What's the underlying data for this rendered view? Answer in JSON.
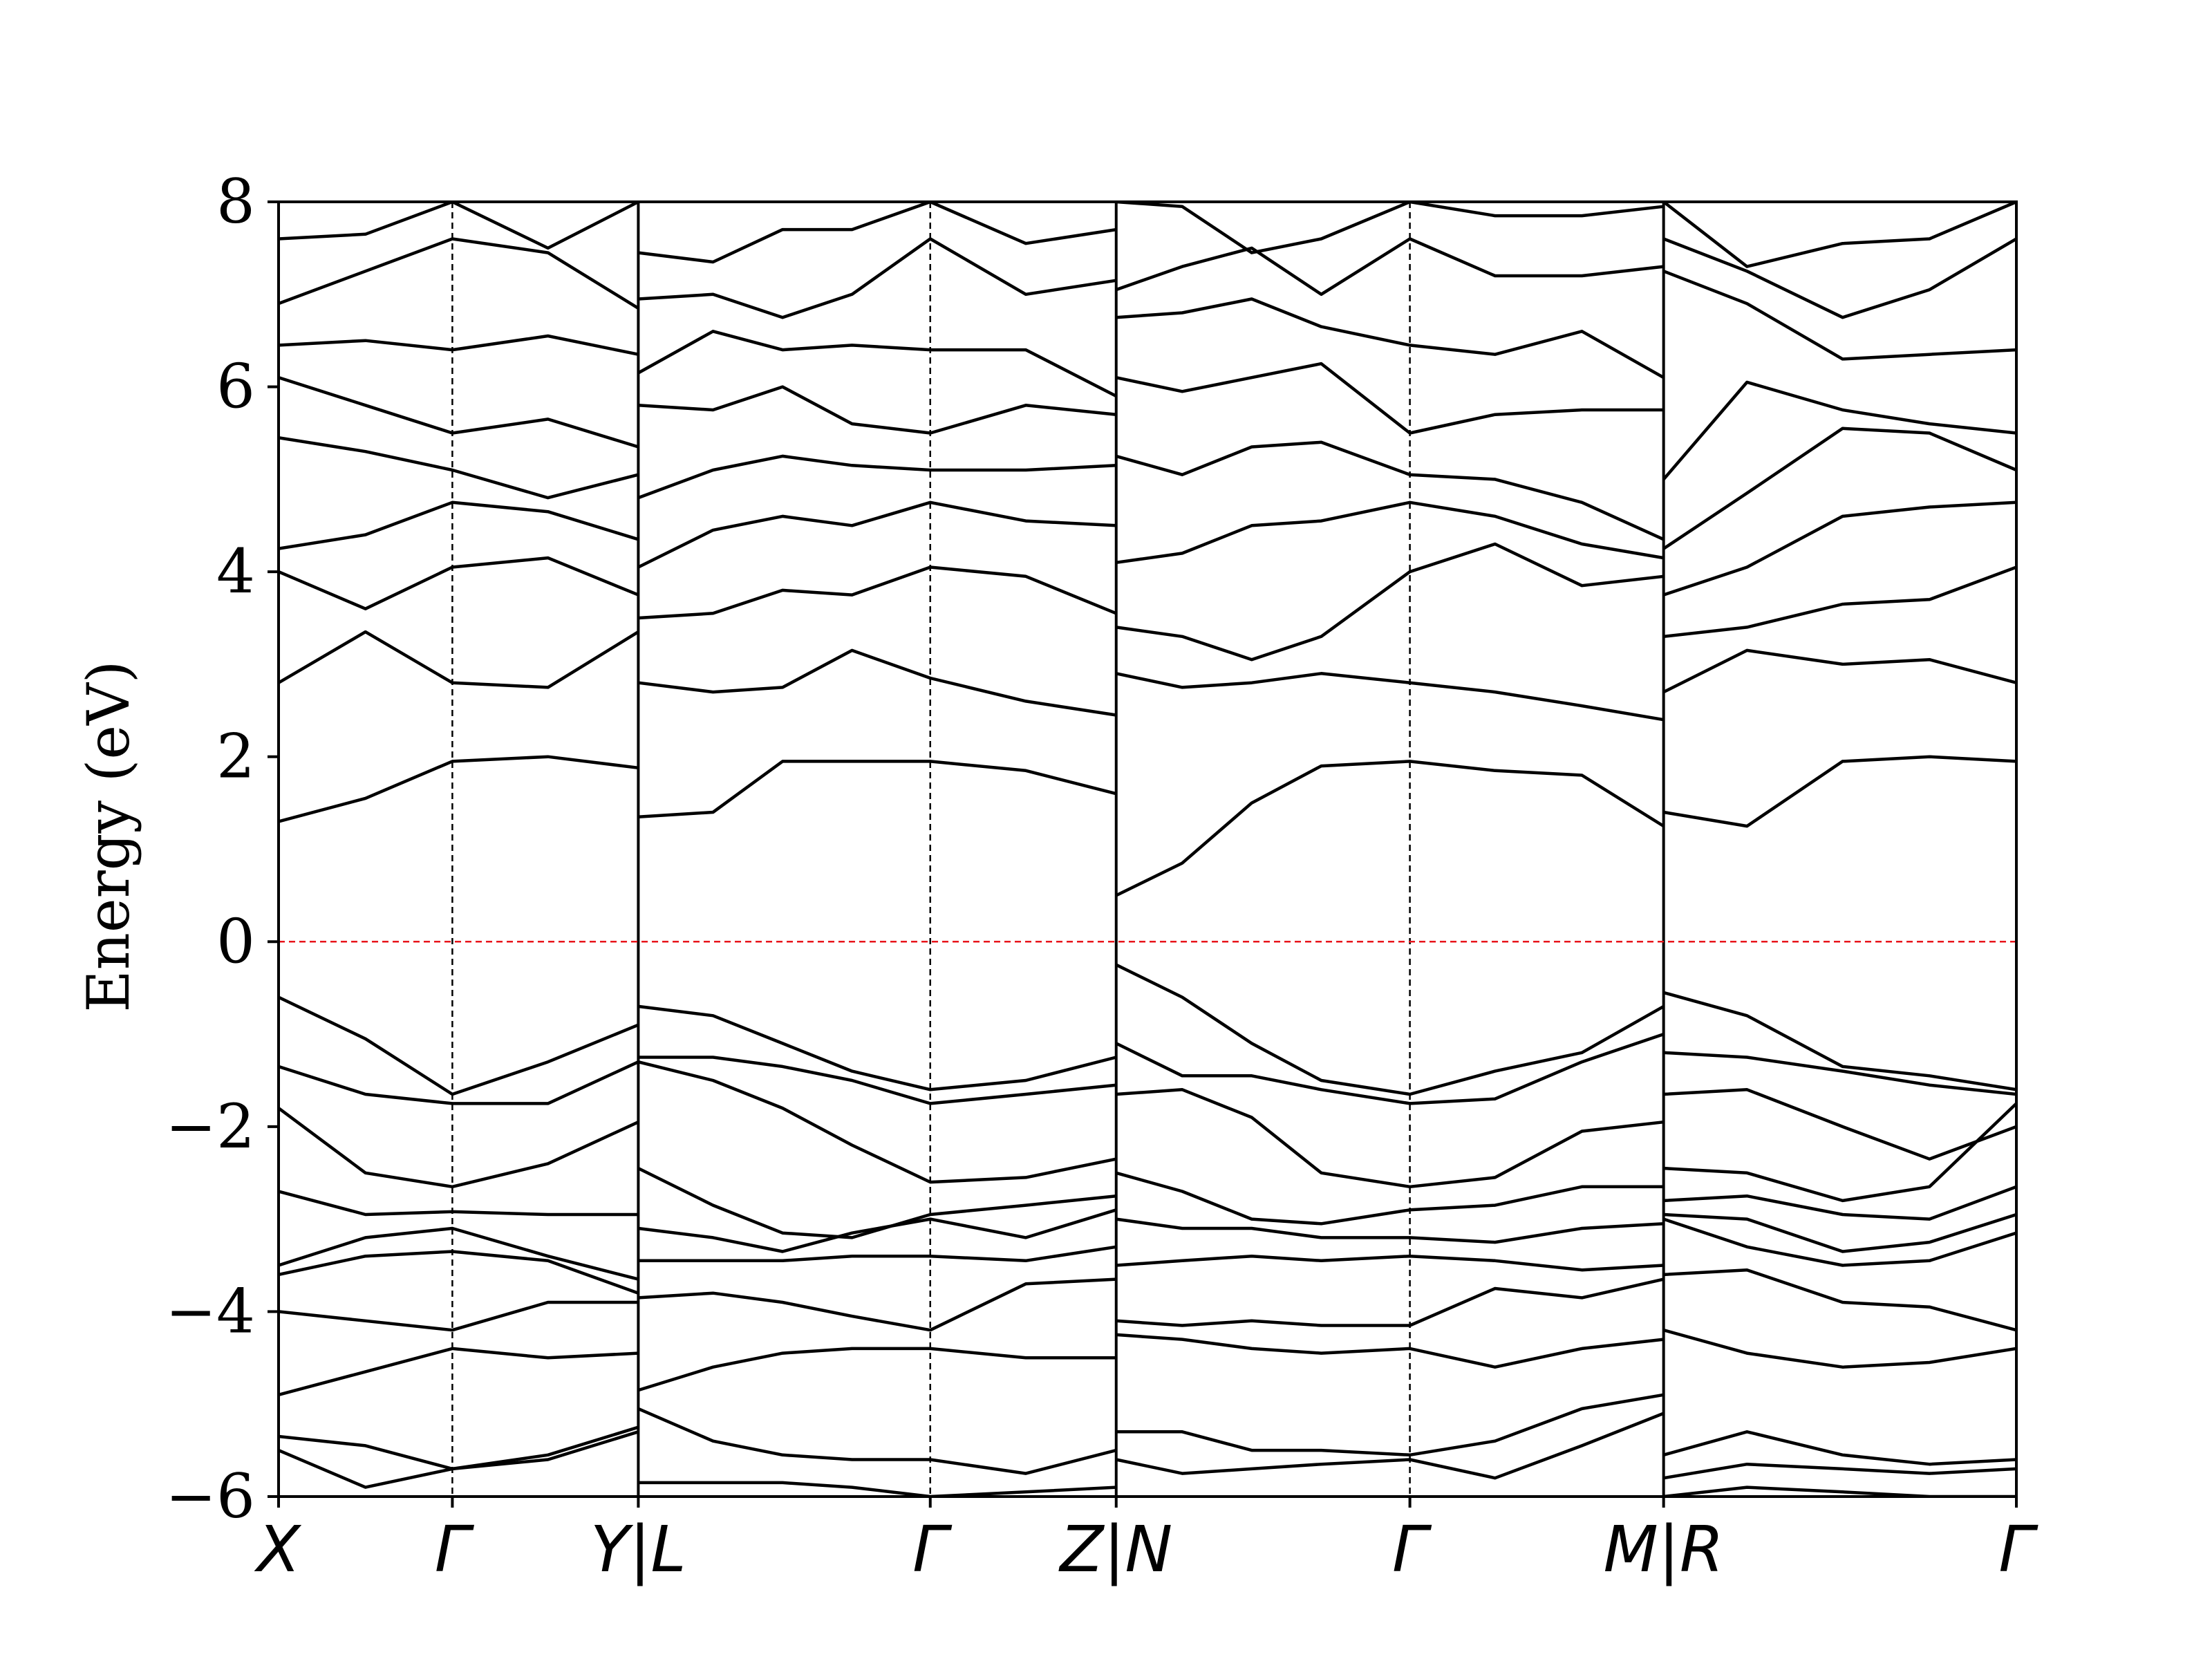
{
  "chart_data": {
    "type": "line",
    "title": "",
    "xlabel": "",
    "ylabel": "Energy (eV)",
    "ylim": [
      -6,
      8
    ],
    "yticks": [
      8,
      6,
      4,
      2,
      0,
      -2,
      -4,
      -6
    ],
    "ytick_labels": [
      "8",
      "6",
      "4",
      "2",
      "0",
      "−2",
      "−4",
      "−6"
    ],
    "fermi_level": 0,
    "fermi_color": "#e8141b",
    "band_color": "#000000",
    "grid": false,
    "x_ticks": [
      {
        "label": "X",
        "x": 0
      },
      {
        "label": "Γ",
        "x": 0.1
      },
      {
        "label": "Y|L",
        "x": 0.207
      },
      {
        "label": "Γ",
        "x": 0.375
      },
      {
        "label": "Z|N",
        "x": 0.482
      },
      {
        "label": "Γ",
        "x": 0.651
      },
      {
        "label": "M|R",
        "x": 0.797
      },
      {
        "label": "Γ",
        "x": 1.0
      }
    ],
    "gamma_lines": [
      0.1,
      0.375,
      0.651
    ],
    "segment_boundaries": [
      0.207,
      0.482,
      0.797
    ],
    "segments": [
      {
        "path": "X-Γ-Y",
        "x": [
          0,
          0.05,
          0.1,
          0.155,
          0.207
        ],
        "bands": [
          [
            -5.5,
            -5.9,
            -5.7,
            -5.6,
            -5.3
          ],
          [
            -5.35,
            -5.45,
            -5.7,
            -5.55,
            -5.25
          ],
          [
            -4.9,
            -4.65,
            -4.4,
            -4.5,
            -4.45
          ],
          [
            -4.0,
            -4.1,
            -4.2,
            -3.9,
            -3.9
          ],
          [
            -3.6,
            -3.4,
            -3.35,
            -3.45,
            -3.8
          ],
          [
            -3.5,
            -3.2,
            -3.1,
            -3.4,
            -3.65
          ],
          [
            -2.7,
            -2.95,
            -2.92,
            -2.95,
            -2.95
          ],
          [
            -1.8,
            -2.5,
            -2.65,
            -2.4,
            -1.95
          ],
          [
            -1.35,
            -1.65,
            -1.75,
            -1.75,
            -1.3
          ],
          [
            -0.6,
            -1.05,
            -1.65,
            -1.3,
            -0.9
          ],
          [
            1.3,
            1.55,
            1.95,
            2.0,
            1.88
          ],
          [
            2.8,
            3.35,
            2.8,
            2.75,
            3.35
          ],
          [
            4.0,
            3.6,
            4.05,
            4.15,
            3.75
          ],
          [
            4.25,
            4.4,
            4.75,
            4.65,
            4.35
          ],
          [
            5.45,
            5.3,
            5.1,
            4.8,
            5.05
          ],
          [
            6.1,
            5.8,
            5.5,
            5.65,
            5.35
          ],
          [
            6.45,
            6.5,
            6.4,
            6.55,
            6.35
          ],
          [
            6.9,
            7.25,
            7.6,
            7.45,
            6.85
          ],
          [
            7.6,
            7.65,
            8.0,
            7.5,
            8.0
          ]
        ]
      },
      {
        "path": "L-Γ-Z",
        "x": [
          0.207,
          0.25,
          0.29,
          0.33,
          0.375,
          0.43,
          0.482
        ],
        "bands": [
          [
            -5.85,
            -5.85,
            -5.85,
            -5.9,
            -6.0,
            -5.95,
            -5.9
          ],
          [
            -5.05,
            -5.4,
            -5.55,
            -5.6,
            -5.6,
            -5.75,
            -5.5
          ],
          [
            -4.85,
            -4.6,
            -4.45,
            -4.4,
            -4.4,
            -4.5,
            -4.5
          ],
          [
            -3.85,
            -3.8,
            -3.9,
            -4.05,
            -4.2,
            -3.7,
            -3.65
          ],
          [
            -3.45,
            -3.45,
            -3.45,
            -3.4,
            -3.4,
            -3.45,
            -3.3
          ],
          [
            -3.1,
            -3.2,
            -3.35,
            -3.15,
            -3.0,
            -3.2,
            -2.9
          ],
          [
            -2.45,
            -2.85,
            -3.15,
            -3.2,
            -2.95,
            -2.85,
            -2.75
          ],
          [
            -1.3,
            -1.5,
            -1.8,
            -2.2,
            -2.6,
            -2.55,
            -2.35
          ],
          [
            -1.25,
            -1.25,
            -1.35,
            -1.5,
            -1.75,
            -1.65,
            -1.55
          ],
          [
            -0.7,
            -0.8,
            -1.1,
            -1.4,
            -1.6,
            -1.5,
            -1.25
          ],
          [
            1.35,
            1.4,
            1.95,
            1.95,
            1.95,
            1.85,
            1.6
          ],
          [
            2.8,
            2.7,
            2.75,
            3.15,
            2.85,
            2.6,
            2.45
          ],
          [
            3.5,
            3.55,
            3.8,
            3.75,
            4.05,
            3.95,
            3.55
          ],
          [
            4.05,
            4.45,
            4.6,
            4.5,
            4.75,
            4.55,
            4.5
          ],
          [
            4.8,
            5.1,
            5.25,
            5.15,
            5.1,
            5.1,
            5.15
          ],
          [
            5.8,
            5.75,
            6.0,
            5.6,
            5.5,
            5.8,
            5.7
          ],
          [
            6.15,
            6.6,
            6.4,
            6.45,
            6.4,
            6.4,
            5.9
          ],
          [
            6.95,
            7.0,
            6.75,
            7.0,
            7.6,
            7.0,
            7.15
          ],
          [
            7.45,
            7.35,
            7.7,
            7.7,
            8.0,
            7.55,
            7.7
          ]
        ]
      },
      {
        "path": "N-Γ-M",
        "x": [
          0.482,
          0.52,
          0.56,
          0.6,
          0.651,
          0.7,
          0.75,
          0.797
        ],
        "bands": [
          [
            -5.6,
            -5.75,
            -5.7,
            -5.65,
            -5.6,
            -5.8,
            -5.45,
            -5.1
          ],
          [
            -5.3,
            -5.3,
            -5.5,
            -5.5,
            -5.55,
            -5.4,
            -5.05,
            -4.9
          ],
          [
            -4.25,
            -4.3,
            -4.4,
            -4.45,
            -4.4,
            -4.6,
            -4.4,
            -4.3
          ],
          [
            -4.1,
            -4.15,
            -4.1,
            -4.15,
            -4.15,
            -3.75,
            -3.85,
            -3.65
          ],
          [
            -3.5,
            -3.45,
            -3.4,
            -3.45,
            -3.4,
            -3.45,
            -3.55,
            -3.5
          ],
          [
            -3.0,
            -3.1,
            -3.1,
            -3.2,
            -3.2,
            -3.25,
            -3.1,
            -3.05
          ],
          [
            -2.5,
            -2.7,
            -3.0,
            -3.05,
            -2.9,
            -2.85,
            -2.65,
            -2.65
          ],
          [
            -1.65,
            -1.6,
            -1.9,
            -2.5,
            -2.65,
            -2.55,
            -2.05,
            -1.95
          ],
          [
            -1.1,
            -1.45,
            -1.45,
            -1.6,
            -1.75,
            -1.7,
            -1.3,
            -1.0
          ],
          [
            -0.25,
            -0.6,
            -1.1,
            -1.5,
            -1.65,
            -1.4,
            -1.2,
            -0.7
          ],
          [
            0.5,
            0.85,
            1.5,
            1.9,
            1.95,
            1.85,
            1.8,
            1.25
          ],
          [
            2.9,
            2.75,
            2.8,
            2.9,
            2.8,
            2.7,
            2.55,
            2.4
          ],
          [
            3.4,
            3.3,
            3.05,
            3.3,
            4.0,
            4.3,
            3.85,
            3.95
          ],
          [
            4.1,
            4.2,
            4.5,
            4.55,
            4.75,
            4.6,
            4.3,
            4.15
          ],
          [
            5.25,
            5.05,
            5.35,
            5.4,
            5.05,
            5.0,
            4.75,
            4.35
          ],
          [
            6.1,
            5.95,
            6.1,
            6.25,
            5.5,
            5.7,
            5.75,
            5.75
          ],
          [
            6.75,
            6.8,
            6.95,
            6.65,
            6.45,
            6.35,
            6.6,
            6.1
          ],
          [
            7.05,
            7.3,
            7.5,
            7.0,
            7.6,
            7.2,
            7.2,
            7.3
          ],
          [
            8.0,
            7.95,
            7.45,
            7.6,
            8.0,
            7.85,
            7.85,
            7.95
          ]
        ]
      },
      {
        "path": "R-Γ",
        "x": [
          0.797,
          0.845,
          0.9,
          0.95,
          1.0
        ],
        "bands": [
          [
            -6.0,
            -5.9,
            -5.95,
            -6.0,
            -6.0
          ],
          [
            -5.8,
            -5.65,
            -5.7,
            -5.75,
            -5.7
          ],
          [
            -5.55,
            -5.3,
            -5.55,
            -5.65,
            -5.6
          ],
          [
            -4.2,
            -4.45,
            -4.6,
            -4.55,
            -4.4
          ],
          [
            -3.6,
            -3.55,
            -3.9,
            -3.95,
            -4.2
          ],
          [
            -3.0,
            -3.3,
            -3.5,
            -3.45,
            -3.15
          ],
          [
            -2.95,
            -3.0,
            -3.35,
            -3.25,
            -2.95
          ],
          [
            -2.8,
            -2.75,
            -2.95,
            -3.0,
            -2.65
          ],
          [
            -2.45,
            -2.5,
            -2.8,
            -2.65,
            -1.75
          ],
          [
            -1.65,
            -1.6,
            -2.0,
            -2.35,
            -2.0
          ],
          [
            -1.2,
            -1.25,
            -1.4,
            -1.55,
            -1.65
          ],
          [
            -0.55,
            -0.8,
            -1.35,
            -1.45,
            -1.6
          ],
          [
            1.4,
            1.25,
            1.95,
            2.0,
            1.95
          ],
          [
            2.7,
            3.15,
            3.0,
            3.05,
            2.8
          ],
          [
            3.3,
            3.4,
            3.65,
            3.7,
            4.05
          ],
          [
            3.75,
            4.05,
            4.6,
            4.7,
            4.75
          ],
          [
            4.25,
            4.85,
            5.55,
            5.5,
            5.1
          ],
          [
            5.0,
            6.05,
            5.75,
            5.6,
            5.5
          ],
          [
            7.25,
            6.9,
            6.3,
            6.35,
            6.4
          ],
          [
            7.6,
            7.25,
            6.75,
            7.05,
            7.6
          ],
          [
            8.0,
            7.3,
            7.55,
            7.6,
            8.0
          ]
        ]
      }
    ]
  }
}
